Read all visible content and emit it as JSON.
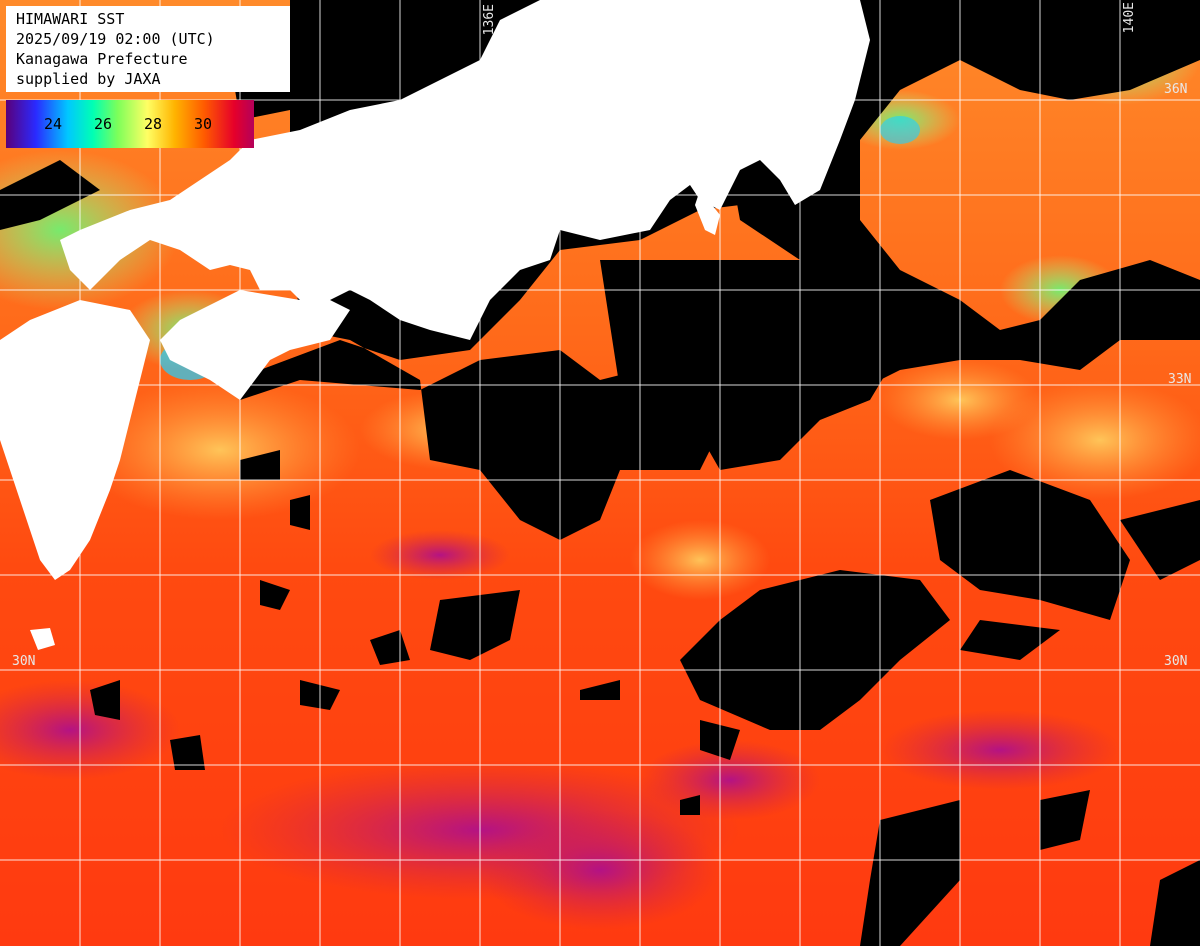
{
  "header": {
    "line1": "HIMAWARI SST",
    "line2": "2025/09/19 02:00 (UTC)",
    "line3": "Kanagawa Prefecture",
    "line4": "supplied by JAXA"
  },
  "legend": {
    "ticks": [
      "24",
      "26",
      "28",
      "30"
    ]
  },
  "grid_labels": {
    "lat_36_right": "36N",
    "lat_33_right": "33N",
    "lat_30_left": "30N",
    "lat_30_right": "30N",
    "lon_136": "136E",
    "lon_140": "140E"
  },
  "colors": {
    "land": "#ffffff",
    "cloud": "#000000",
    "grid": "#ffffff"
  }
}
